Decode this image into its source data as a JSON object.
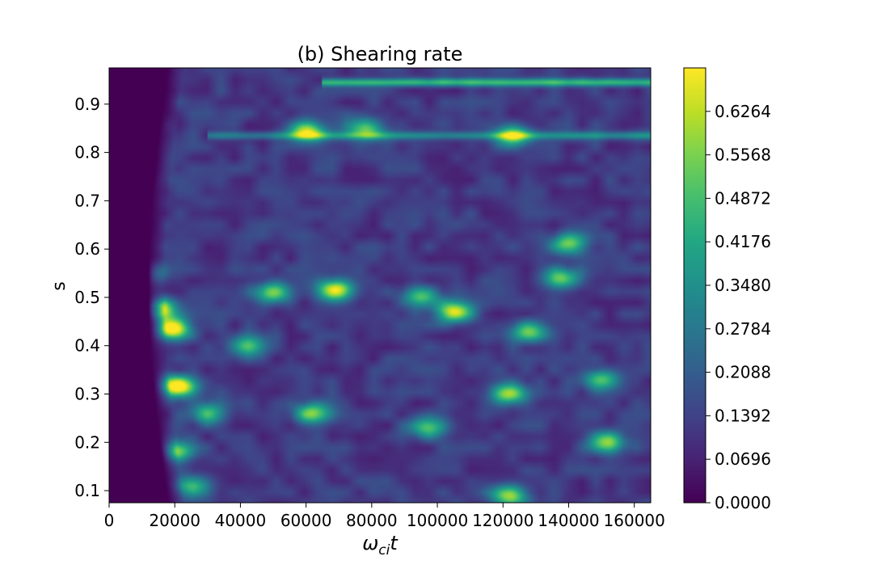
{
  "chart_data": {
    "type": "heatmap",
    "title": "(b) Shearing rate",
    "xlabel": "ω",
    "xlabel_sub": "ci",
    "xlabel_tail": "t",
    "ylabel": "s",
    "xlim": [
      0,
      165000
    ],
    "ylim": [
      0.075,
      0.975
    ],
    "xticks": [
      0,
      20000,
      40000,
      60000,
      80000,
      100000,
      120000,
      140000,
      160000
    ],
    "xtick_labels": [
      "0",
      "20000",
      "40000",
      "60000",
      "80000",
      "100000",
      "120000",
      "140000",
      "160000"
    ],
    "yticks": [
      0.1,
      0.2,
      0.3,
      0.4,
      0.5,
      0.6,
      0.7,
      0.8,
      0.9
    ],
    "ytick_labels": [
      "0.1",
      "0.2",
      "0.3",
      "0.4",
      "0.5",
      "0.6",
      "0.7",
      "0.8",
      "0.9"
    ],
    "colorbar": {
      "min": 0.0,
      "max": 0.696,
      "ticks": [
        0.0,
        0.0696,
        0.1392,
        0.2088,
        0.2784,
        0.348,
        0.4176,
        0.4872,
        0.5568,
        0.6264
      ],
      "tick_labels": [
        "0.0000",
        "0.0696",
        "0.1392",
        "0.2088",
        "0.2784",
        "0.3480",
        "0.4176",
        "0.4872",
        "0.5568",
        "0.6264"
      ],
      "colormap": "viridis"
    },
    "hotspots": [
      {
        "x": 14000,
        "y": 0.475,
        "v": 0.68
      },
      {
        "x": 19000,
        "y": 0.435,
        "v": 0.66
      },
      {
        "x": 21000,
        "y": 0.315,
        "v": 0.69
      },
      {
        "x": 11000,
        "y": 0.55,
        "v": 0.45
      },
      {
        "x": 20000,
        "y": 0.18,
        "v": 0.5
      },
      {
        "x": 69000,
        "y": 0.515,
        "v": 0.62
      },
      {
        "x": 50000,
        "y": 0.51,
        "v": 0.48
      },
      {
        "x": 60000,
        "y": 0.845,
        "v": 0.55
      },
      {
        "x": 78000,
        "y": 0.85,
        "v": 0.42
      },
      {
        "x": 62000,
        "y": 0.26,
        "v": 0.45
      },
      {
        "x": 105000,
        "y": 0.47,
        "v": 0.55
      },
      {
        "x": 122000,
        "y": 0.3,
        "v": 0.48
      },
      {
        "x": 140000,
        "y": 0.61,
        "v": 0.45
      },
      {
        "x": 138000,
        "y": 0.54,
        "v": 0.42
      },
      {
        "x": 152000,
        "y": 0.2,
        "v": 0.42
      },
      {
        "x": 123000,
        "y": 0.835,
        "v": 0.45
      },
      {
        "x": 122000,
        "y": 0.09,
        "v": 0.45
      },
      {
        "x": 95000,
        "y": 0.5,
        "v": 0.4
      },
      {
        "x": 128000,
        "y": 0.43,
        "v": 0.4
      },
      {
        "x": 150000,
        "y": 0.33,
        "v": 0.38
      },
      {
        "x": 97000,
        "y": 0.23,
        "v": 0.35
      },
      {
        "x": 42000,
        "y": 0.4,
        "v": 0.35
      },
      {
        "x": 30000,
        "y": 0.26,
        "v": 0.35
      },
      {
        "x": 25000,
        "y": 0.11,
        "v": 0.35
      }
    ],
    "bands": [
      {
        "y": 0.945,
        "x_start": 65000,
        "x_end": 165000,
        "v": 0.35
      },
      {
        "y": 0.835,
        "x_start": 30000,
        "x_end": 165000,
        "v": 0.2
      }
    ],
    "empty_region_boundary_x": 18000
  }
}
